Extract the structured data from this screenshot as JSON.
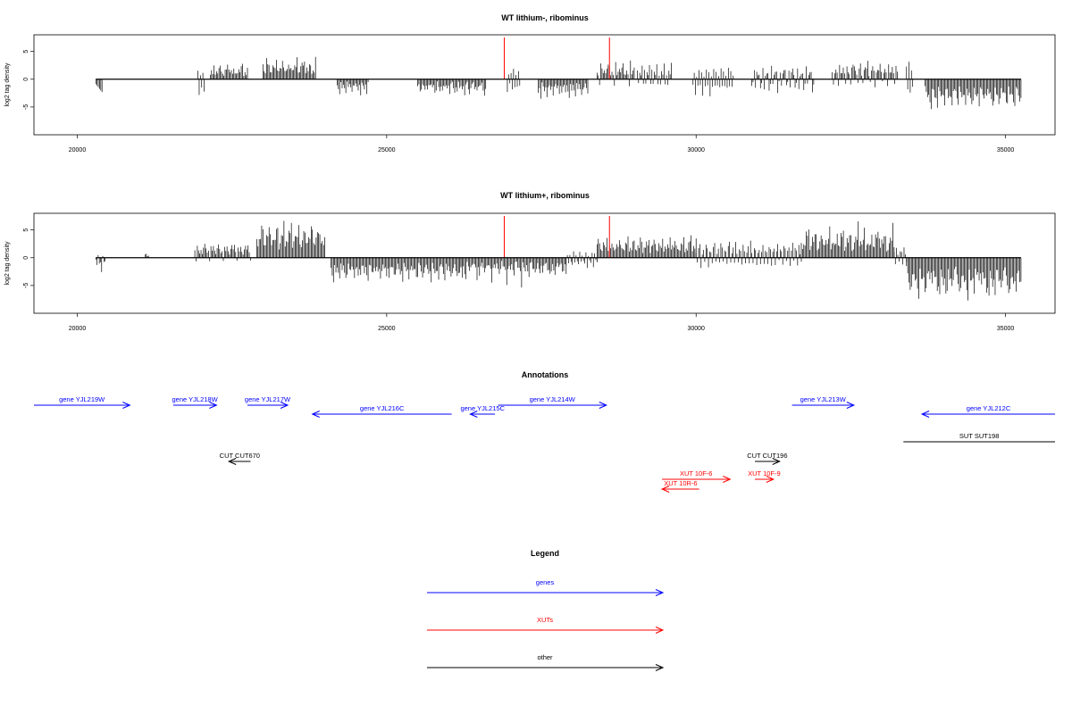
{
  "colors": {
    "gene": "#0000ff",
    "xut": "#ff0000",
    "other": "#000000",
    "marker": "#ff0000",
    "bars": "#000000"
  },
  "chart_data": [
    {
      "type": "bar",
      "title": "WT lithium-, ribominus",
      "ylabel": "log2 tag density",
      "xlim": [
        19300,
        35800
      ],
      "ylim": [
        -10,
        8
      ],
      "x_ticks": [
        20000,
        25000,
        30000,
        35000
      ],
      "y_ticks": [
        -5,
        0,
        5
      ],
      "markers": [
        26900,
        28600
      ],
      "grid": false,
      "data": {
        "x_start": 20300,
        "x_end": 35250,
        "step": 20,
        "segments": [
          {
            "from": 20300,
            "to": 20400,
            "values": [
              -2.5
            ]
          },
          {
            "from": 21950,
            "to": 22050,
            "values": [
              2,
              -3.2
            ]
          },
          {
            "from": 22150,
            "to": 22750,
            "values": [
              1.5,
              2.5,
              1.2,
              2.8,
              2.4,
              3.1,
              1.8,
              2.9,
              3.0
            ]
          },
          {
            "from": 23000,
            "to": 23850,
            "values": [
              2.8,
              3.4,
              2.1,
              5.8,
              3.5,
              2.9,
              3.6,
              2.7,
              4.3,
              3.1,
              2.5,
              3.8,
              4.1,
              2.9,
              3.3,
              2.6,
              3.9,
              2.2,
              3.5,
              2.8
            ]
          },
          {
            "from": 24200,
            "to": 24700,
            "values": [
              -1.5,
              -2.1,
              -2.8,
              -1.2,
              -3.0
            ]
          },
          {
            "from": 25500,
            "to": 26600,
            "values": [
              -2.5,
              -1.5,
              -3.0,
              -2.2,
              -1.0,
              -2.8,
              -3.5,
              -1.8,
              -2.4,
              -1.2,
              -3.1,
              -2.0
            ]
          },
          {
            "from": 26950,
            "to": 27150,
            "values": [
              -2.5,
              2.2,
              -1.5,
              1.8
            ]
          },
          {
            "from": 27450,
            "to": 28250,
            "values": [
              -3.5,
              -2.0,
              -3.8,
              -1.5,
              -2.6
            ]
          },
          {
            "from": 28400,
            "to": 29000,
            "values": [
              2.5,
              1.2,
              -1.5,
              3.5,
              2.1,
              2.9,
              3.2,
              1.8,
              2.6,
              3.1,
              2.3,
              1.6
            ]
          },
          {
            "from": 29050,
            "to": 29600,
            "values": [
              1.8,
              -2.0,
              2.5,
              1.2,
              3.5,
              -1.0
            ]
          },
          {
            "from": 29950,
            "to": 30600,
            "values": [
              -1.5,
              1.5,
              -3.2,
              1.2,
              -2.5,
              2.8
            ]
          },
          {
            "from": 30900,
            "to": 31900,
            "values": [
              -2.8,
              -1.0,
              2.5,
              -2.0,
              1.5,
              2.0,
              1.8
            ]
          },
          {
            "from": 32200,
            "to": 33250,
            "values": [
              1.5,
              -1.0,
              2.5,
              3.2,
              1.8,
              -1.5,
              2.9,
              3.1,
              2.4,
              3.6
            ]
          },
          {
            "from": 33400,
            "to": 33500,
            "values": [
              3.7,
              -2.5
            ]
          },
          {
            "from": 33700,
            "to": 35250,
            "values": [
              -3.2,
              -4.5,
              -5.2,
              -3.8,
              -4.9,
              -5.6,
              -4.1,
              -3.5,
              -5.0,
              -4.4,
              -5.8,
              -3.9,
              -4.6,
              -5.3,
              -4.0,
              -3.6,
              -5.1,
              -4.7,
              -3.4,
              -5.5,
              -4.2,
              -3.8,
              -4.9,
              -5.0,
              -3.3
            ]
          }
        ]
      }
    },
    {
      "type": "bar",
      "title": "WT lithium+, ribominus",
      "ylabel": "log2 tag density",
      "xlim": [
        19300,
        35800
      ],
      "ylim": [
        -10,
        8
      ],
      "x_ticks": [
        20000,
        25000,
        30000,
        35000
      ],
      "y_ticks": [
        -5,
        0,
        5
      ],
      "markers": [
        26900,
        28600
      ],
      "grid": false,
      "data": {
        "x_start": 20300,
        "x_end": 35250,
        "step": 20,
        "segments": [
          {
            "from": 20300,
            "to": 20450,
            "values": [
              -1.0,
              -2.8,
              0.8,
              -1.5
            ]
          },
          {
            "from": 21100,
            "to": 21150,
            "values": [
              0.8
            ]
          },
          {
            "from": 21900,
            "to": 22800,
            "values": [
              2.5,
              -1.0,
              2.8,
              1.5,
              2.2,
              3.0,
              1.2,
              2.6,
              3.1,
              1.8,
              2.4
            ]
          },
          {
            "from": 22900,
            "to": 24000,
            "values": [
              3.5,
              4.8,
              6.2,
              5.1,
              7.5,
              5.8,
              6.4,
              4.9,
              7.0,
              5.5,
              6.8,
              4.6,
              5.9,
              6.3,
              5.2,
              4.4,
              6.1,
              5.6
            ]
          },
          {
            "from": 24100,
            "to": 26200,
            "values": [
              -2.5,
              -3.8,
              -4.6,
              -3.1,
              -4.9,
              -2.7,
              -3.5,
              -4.2,
              -3.0,
              -4.8,
              -2.4,
              -3.9,
              -4.5,
              -3.3,
              -2.8,
              -4.1,
              -3.6,
              -2.2
            ]
          },
          {
            "from": 26200,
            "to": 27900,
            "values": [
              -3.0,
              -5.8,
              -2.1,
              -3.5,
              -4.0,
              -1.8,
              -2.9,
              -3.6,
              -2.2,
              -1.5,
              -3.1,
              -2.6
            ]
          },
          {
            "from": 27900,
            "to": 28400,
            "values": [
              -1.5,
              1.2,
              -2.0,
              0.8,
              -1.0
            ]
          },
          {
            "from": 28400,
            "to": 30000,
            "values": [
              3.5,
              4.2,
              2.8,
              3.9,
              2.5,
              4.5,
              3.1,
              2.2,
              3.7,
              2.9,
              4.0,
              2.6,
              3.3,
              2.1,
              3.8
            ]
          },
          {
            "from": 30000,
            "to": 31700,
            "values": [
              1.8,
              -1.5,
              2.5,
              3.0,
              -2.0,
              1.5,
              2.8,
              -1.2,
              3.2,
              2.0,
              -1.8,
              2.6
            ]
          },
          {
            "from": 31700,
            "to": 33200,
            "values": [
              3.0,
              4.5,
              5.2,
              3.8,
              6.8,
              4.9,
              5.5,
              3.6,
              4.2,
              6.1,
              3.9,
              5.0,
              4.4,
              3.2
            ]
          },
          {
            "from": 33200,
            "to": 33400,
            "values": [
              1.5,
              -1.5,
              2.0
            ]
          },
          {
            "from": 33400,
            "to": 35250,
            "values": [
              -3.5,
              -5.2,
              -6.8,
              -7.5,
              -5.9,
              -8.6,
              -6.4,
              -7.1,
              -5.5,
              -6.9,
              -8.0,
              -5.1,
              -7.6,
              -6.2,
              -4.8,
              -7.3,
              -5.7,
              -6.6,
              -4.5,
              -5.9
            ]
          }
        ]
      }
    }
  ],
  "annotations": {
    "title": "Annotations",
    "features": [
      {
        "label": "gene YJL219W",
        "start": 19300,
        "end": 20850,
        "strand": "+",
        "kind": "gene",
        "row": 1
      },
      {
        "label": "gene YJL218W",
        "start": 21550,
        "end": 22250,
        "strand": "+",
        "kind": "gene",
        "row": 1
      },
      {
        "label": "gene YJL217W",
        "start": 22750,
        "end": 23400,
        "strand": "+",
        "kind": "gene",
        "row": 1
      },
      {
        "label": "gene YJL216C",
        "start": 23800,
        "end": 26050,
        "strand": "-",
        "kind": "gene",
        "row": 2
      },
      {
        "label": "gene YJL215C",
        "start": 26350,
        "end": 26750,
        "strand": "-",
        "kind": "gene",
        "row": 2
      },
      {
        "label": "gene YJL214W",
        "start": 26800,
        "end": 28550,
        "strand": "+",
        "kind": "gene",
        "row": 1
      },
      {
        "label": "gene YJL213W",
        "start": 31550,
        "end": 32550,
        "strand": "+",
        "kind": "gene",
        "row": 1
      },
      {
        "label": "gene YJL212C",
        "start": 33650,
        "end": 35800,
        "strand": "-",
        "kind": "gene",
        "row": 2
      },
      {
        "label": "SUT SUT198",
        "start": 33350,
        "end": 35800,
        "strand": ".",
        "kind": "other",
        "row": 3
      },
      {
        "label": "CUT CUT670",
        "start": 22450,
        "end": 22800,
        "strand": "-",
        "kind": "other",
        "row": 4
      },
      {
        "label": "CUT CUT196",
        "start": 30950,
        "end": 31350,
        "strand": "+",
        "kind": "other",
        "row": 4
      },
      {
        "label": "XUT 10F-6",
        "start": 29450,
        "end": 30550,
        "strand": "+",
        "kind": "xut",
        "row": 5
      },
      {
        "label": "XUT 10F-9",
        "start": 30950,
        "end": 31250,
        "strand": "+",
        "kind": "xut",
        "row": 5
      },
      {
        "label": "XUT 10R-6",
        "start": 29450,
        "end": 30050,
        "strand": "-",
        "kind": "xut",
        "row": 6
      }
    ]
  },
  "legend": {
    "title": "Legend",
    "items": [
      {
        "label": "genes",
        "kind": "gene"
      },
      {
        "label": "XUTs",
        "kind": "xut"
      },
      {
        "label": "other",
        "kind": "other"
      }
    ]
  }
}
